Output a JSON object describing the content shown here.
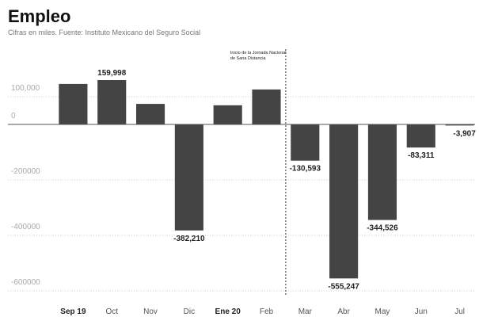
{
  "chart_data": {
    "type": "bar",
    "title": "Empleo",
    "subtitle": "Cifras en miles. Fuente: Instituto Mexicano del Seguro Social",
    "categories": [
      "Sep 19",
      "Oct",
      "Nov",
      "Dic",
      "Ene 20",
      "Feb",
      "Mar",
      "Abr",
      "May",
      "Jun",
      "Jul"
    ],
    "values": [
      146000,
      159998,
      74000,
      -382210,
      69000,
      126000,
      -130593,
      -555247,
      -344526,
      -83311,
      -3907
    ],
    "value_labels": [
      null,
      "159,998",
      null,
      "-382,210",
      null,
      null,
      "-130,593",
      "-555,247",
      "-344,526",
      "-83,311",
      "-3,907"
    ],
    "color": "#444444",
    "ylim": [
      -620000,
      200000
    ],
    "yticks": [
      {
        "value": 100000,
        "label": "100,000"
      },
      0,
      -200000,
      -400000,
      -600000
    ],
    "grid": true,
    "bold_category_indices": [
      0,
      4
    ],
    "annotation": [
      "Inicio de la Jornada Nacional",
      "de Sana Distancia"
    ]
  }
}
